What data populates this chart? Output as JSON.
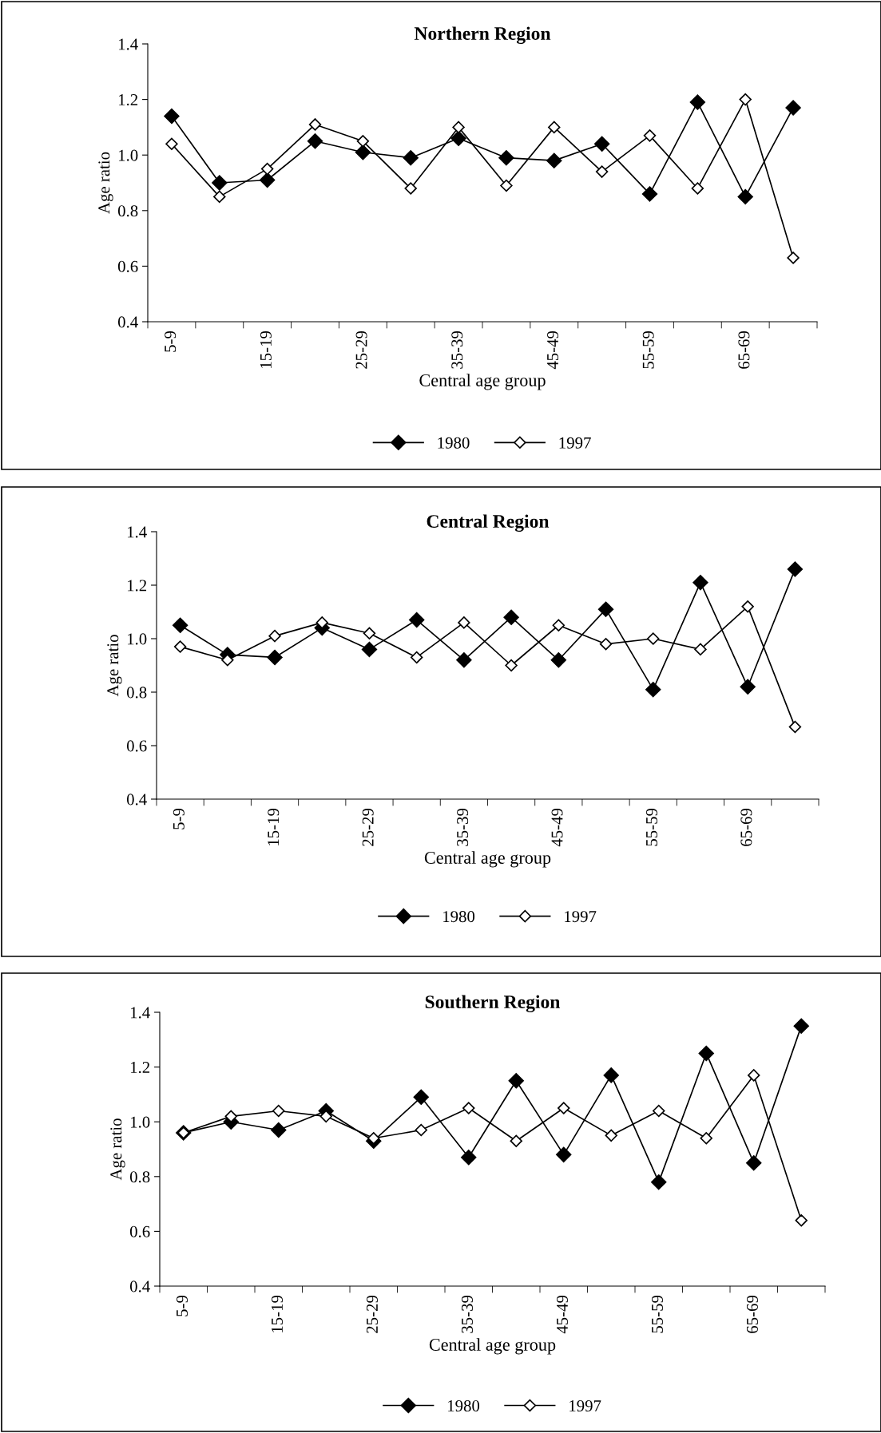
{
  "chart_data": [
    {
      "type": "line",
      "title": "Northern Region",
      "xlabel": "Central age group",
      "ylabel": "Age ratio",
      "categories": [
        "5-9",
        null,
        "15-19",
        null,
        "25-29",
        null,
        "35-39",
        null,
        "45-49",
        null,
        "55-59",
        null,
        "65-69",
        null
      ],
      "ylim": [
        0.4,
        1.4
      ],
      "yticks": [
        {
          "value": 0.4,
          "label": "0.4"
        },
        {
          "value": 0.6,
          "label": "0.6"
        },
        {
          "value": 0.8,
          "label": "0.8"
        },
        {
          "value": 1.0,
          "label": "1.0"
        },
        {
          "value": 1.2,
          "label": "1.2"
        },
        {
          "value": 1.4,
          "label": "1.4"
        }
      ],
      "grid": false,
      "legend": "bottom",
      "marker": "diamond",
      "line_style": "solid",
      "series": [
        {
          "name": "1980",
          "color": "#000000",
          "values": [
            1.14,
            0.9,
            0.91,
            1.05,
            1.01,
            0.99,
            1.06,
            0.99,
            0.98,
            1.04,
            0.86,
            1.19,
            0.85,
            1.17
          ]
        },
        {
          "name": "1997",
          "color": "#000000",
          "values": [
            1.04,
            0.85,
            0.95,
            1.11,
            1.05,
            0.88,
            1.1,
            0.89,
            1.1,
            0.94,
            1.07,
            0.88,
            1.2,
            0.63
          ]
        }
      ]
    },
    {
      "type": "line",
      "title": "Central Region",
      "xlabel": "Central age group",
      "ylabel": "Age ratio",
      "categories": [
        "5-9",
        null,
        "15-19",
        null,
        "25-29",
        null,
        "35-39",
        null,
        "45-49",
        null,
        "55-59",
        null,
        "65-69",
        null
      ],
      "ylim": [
        0.4,
        1.4
      ],
      "yticks": [
        {
          "value": 0.4,
          "label": "0.4"
        },
        {
          "value": 0.6,
          "label": "0.6"
        },
        {
          "value": 0.8,
          "label": "0.8"
        },
        {
          "value": 1.0,
          "label": "1.0"
        },
        {
          "value": 1.2,
          "label": "1.2"
        },
        {
          "value": 1.4,
          "label": "1.4"
        }
      ],
      "grid": false,
      "legend": "bottom",
      "marker": "diamond",
      "line_style": "solid",
      "series": [
        {
          "name": "1980",
          "color": "#000000",
          "values": [
            1.05,
            0.94,
            0.93,
            1.04,
            0.96,
            1.07,
            0.92,
            1.08,
            0.92,
            1.11,
            0.81,
            1.21,
            0.82,
            1.26
          ]
        },
        {
          "name": "1997",
          "color": "#000000",
          "values": [
            0.97,
            0.92,
            1.01,
            1.06,
            1.02,
            0.93,
            1.06,
            0.9,
            1.05,
            0.98,
            1.0,
            0.96,
            1.12,
            0.67
          ]
        }
      ]
    },
    {
      "type": "line",
      "title": "Southern Region",
      "xlabel": "Central age group",
      "ylabel": "Age ratio",
      "categories": [
        "5-9",
        null,
        "15-19",
        null,
        "25-29",
        null,
        "35-39",
        null,
        "45-49",
        null,
        "55-59",
        null,
        "65-69",
        null
      ],
      "ylim": [
        0.4,
        1.4
      ],
      "yticks": [
        {
          "value": 0.4,
          "label": "0.4"
        },
        {
          "value": 0.6,
          "label": "0.6"
        },
        {
          "value": 0.8,
          "label": "0.8"
        },
        {
          "value": 1.0,
          "label": "1.0"
        },
        {
          "value": 1.2,
          "label": "1.2"
        },
        {
          "value": 1.4,
          "label": "1.4"
        }
      ],
      "grid": false,
      "legend": "bottom",
      "marker": "diamond",
      "line_style": "solid",
      "series": [
        {
          "name": "1980",
          "color": "#000000",
          "values": [
            0.96,
            1.0,
            0.97,
            1.04,
            0.93,
            1.09,
            0.87,
            1.15,
            0.88,
            1.17,
            0.78,
            1.25,
            0.85,
            1.35
          ]
        },
        {
          "name": "1997",
          "color": "#000000",
          "values": [
            0.96,
            1.02,
            1.04,
            1.02,
            0.94,
            0.97,
            1.05,
            0.93,
            1.05,
            0.95,
            1.04,
            0.94,
            1.17,
            0.64
          ]
        }
      ]
    }
  ]
}
